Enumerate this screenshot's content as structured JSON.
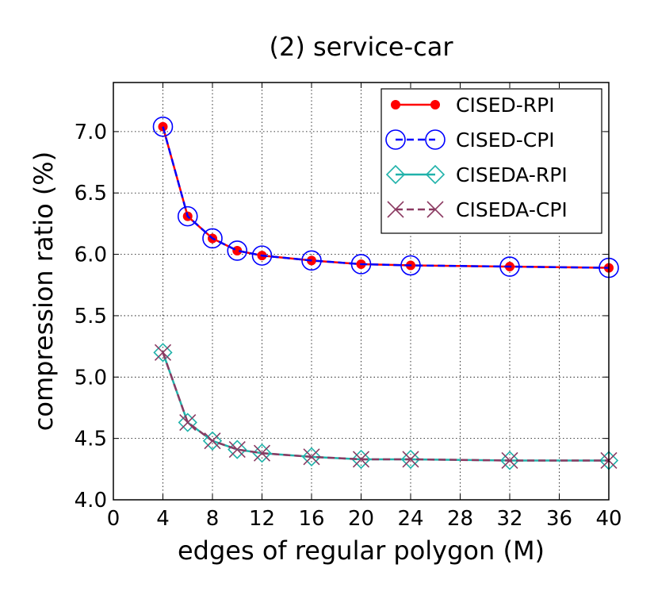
{
  "chart_data": {
    "type": "line",
    "title": "(2) service-car",
    "xlabel": "edges of regular polygon (M)",
    "ylabel": "compression ratio (%)",
    "xlim": [
      0,
      40
    ],
    "ylim": [
      4.0,
      7.4
    ],
    "xticks": [
      0,
      4,
      8,
      12,
      16,
      20,
      24,
      28,
      32,
      36,
      40
    ],
    "yticks": [
      4.0,
      4.5,
      5.0,
      5.5,
      6.0,
      6.5,
      7.0
    ],
    "ytick_labels": [
      "4.0",
      "4.5",
      "5.0",
      "5.5",
      "6.0",
      "6.5",
      "7.0"
    ],
    "grid": true,
    "legend_position": "top-right",
    "x": [
      4,
      6,
      8,
      10,
      12,
      16,
      20,
      24,
      32,
      40
    ],
    "series": [
      {
        "name": "CISED-RPI",
        "color": "#ff0000",
        "line": "solid",
        "marker": "filled-circle",
        "values": [
          7.04,
          6.31,
          6.13,
          6.03,
          5.99,
          5.95,
          5.92,
          5.91,
          5.9,
          5.89
        ]
      },
      {
        "name": "CISED-CPI",
        "color": "#0000ff",
        "line": "dashed",
        "marker": "open-circle",
        "values": [
          7.04,
          6.31,
          6.13,
          6.03,
          5.99,
          5.95,
          5.92,
          5.91,
          5.9,
          5.89
        ]
      },
      {
        "name": "CISEDA-RPI",
        "color": "#20b2aa",
        "line": "solid",
        "marker": "open-diamond",
        "values": [
          5.2,
          4.63,
          4.48,
          4.41,
          4.38,
          4.35,
          4.33,
          4.33,
          4.32,
          4.32
        ]
      },
      {
        "name": "CISEDA-CPI",
        "color": "#8b3a62",
        "line": "dashed",
        "marker": "x",
        "values": [
          5.2,
          4.63,
          4.48,
          4.41,
          4.38,
          4.35,
          4.33,
          4.33,
          4.32,
          4.32
        ]
      }
    ]
  }
}
